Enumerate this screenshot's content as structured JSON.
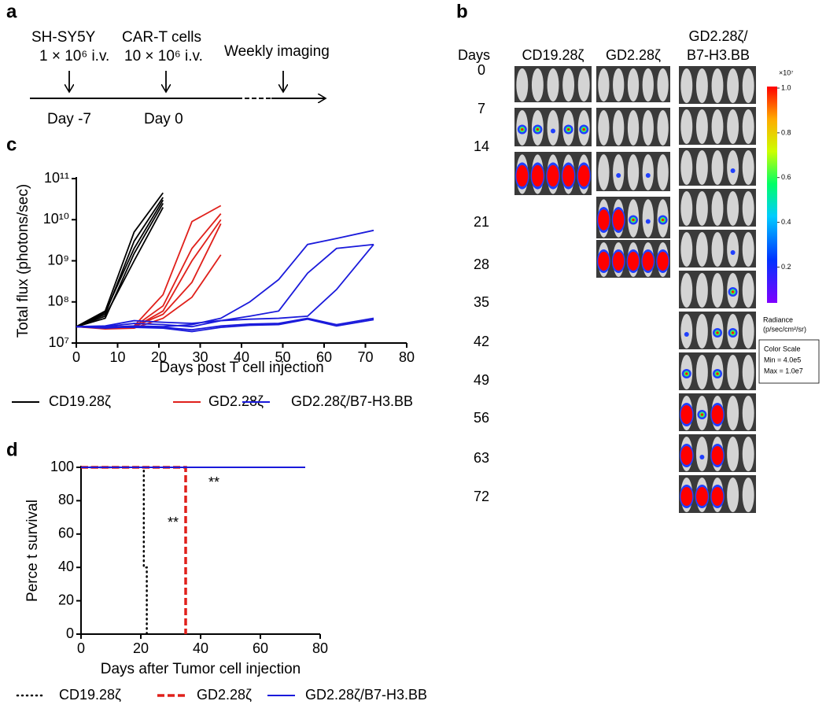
{
  "panel_a": {
    "label": "a",
    "steps": [
      {
        "title": "SH-SY5Y",
        "dose": "1 × 10⁶ i.v.",
        "day": "Day -7"
      },
      {
        "title": "CAR-T cells",
        "dose": "10 × 10⁶ i.v.",
        "day": "Day 0"
      }
    ],
    "imaging": "Weekly imaging"
  },
  "panel_b": {
    "label": "b",
    "row_header": "Days",
    "columns": [
      {
        "lines": [
          "CD19.28ζ"
        ]
      },
      {
        "lines": [
          "GD2.28ζ"
        ]
      },
      {
        "lines": [
          "GD2.28ζ/",
          "B7-H3.BB"
        ]
      }
    ],
    "days": [
      0,
      7,
      14,
      21,
      28,
      35,
      42,
      49,
      56,
      63,
      72
    ],
    "colorbar": {
      "multiplier": "×10⁷",
      "lim": [
        0.04,
        1
      ],
      "ticks": [
        {
          "value": 1,
          "label": "1.0"
        },
        0.8,
        0.6,
        0.4,
        0.2
      ],
      "title": "Radiance",
      "unit": "(p/sec/cm²/sr)",
      "scale_box": [
        "Color Scale",
        "Min = 4.0e5",
        "Max = 1.0e7"
      ]
    }
  },
  "chart_data": [
    {
      "type": "line",
      "panel_label": "c",
      "xlabel": "Days post T cell injection",
      "ylabel": "Total flux (photons/sec)",
      "xlim": [
        0,
        80
      ],
      "xticks": [
        0,
        10,
        20,
        30,
        40,
        50,
        60,
        70,
        80
      ],
      "ylim": [
        10000000.0,
        100000000000.0
      ],
      "yscale": "log",
      "yticks": [
        {
          "value": 10000000.0,
          "label": "10⁷"
        },
        {
          "value": 100000000.0,
          "label": "10⁸"
        },
        {
          "value": 1000000000.0,
          "label": "10⁹"
        },
        {
          "value": 10000000000.0,
          "label": "10¹⁰"
        },
        {
          "value": 100000000000.0,
          "label": "10¹¹"
        }
      ],
      "legend": "bottom",
      "series": [
        {
          "name": "CD19.28ζ",
          "color": "#000000",
          "x": [
            0,
            7,
            14,
            21
          ],
          "replicates": [
            [
              25000000.0,
              60000000.0,
              5000000000.0,
              45000000000.0
            ],
            [
              25000000.0,
              50000000.0,
              3000000000.0,
              35000000000.0
            ],
            [
              25000000.0,
              40000000.0,
              1500000000.0,
              25000000000.0
            ],
            [
              25000000.0,
              45000000.0,
              1000000000.0,
              20000000000.0
            ],
            [
              25000000.0,
              55000000.0,
              2000000000.0,
              30000000000.0
            ]
          ]
        },
        {
          "name": "GD2.28ζ",
          "color": "#e0201b",
          "x": [
            0,
            7,
            14,
            21,
            28,
            35
          ],
          "replicates": [
            [
              25000000.0,
              24000000.0,
              26000000.0,
              150000000.0,
              9000000000.0,
              22000000000.0
            ],
            [
              25000000.0,
              23000000.0,
              25000000.0,
              80000000.0,
              2000000000.0,
              14000000000.0
            ],
            [
              25000000.0,
              23000000.0,
              24000000.0,
              60000000.0,
              1000000000.0,
              10000000000.0
            ],
            [
              25000000.0,
              24000000.0,
              25000000.0,
              50000000.0,
              300000000.0,
              8000000000.0
            ],
            [
              25000000.0,
              22000000.0,
              23000000.0,
              40000000.0,
              130000000.0,
              1400000000.0
            ]
          ]
        },
        {
          "name": "GD2.28ζ/B7-H3.BB",
          "color": "#1a1adb",
          "x": [
            0,
            7,
            14,
            21,
            28,
            35,
            42,
            49,
            56,
            63,
            72
          ],
          "replicates": [
            [
              25000000.0,
              24000000.0,
              26000000.0,
              25000000.0,
              28000000.0,
              40000000.0,
              100000000.0,
              350000000.0,
              2500000000.0,
              3500000000.0,
              5500000000.0
            ],
            [
              25000000.0,
              25000000.0,
              30000000.0,
              28000000.0,
              25000000.0,
              35000000.0,
              45000000.0,
              60000000.0,
              500000000.0,
              2000000000.0,
              2500000000.0
            ],
            [
              25000000.0,
              26000000.0,
              35000000.0,
              32000000.0,
              30000000.0,
              35000000.0,
              38000000.0,
              40000000.0,
              45000000.0,
              200000000.0,
              2500000000.0
            ],
            [
              25000000.0,
              23000000.0,
              25000000.0,
              24000000.0,
              21000000.0,
              26000000.0,
              29000000.0,
              30000000.0,
              40000000.0,
              28000000.0,
              40000000.0
            ],
            [
              25000000.0,
              24000000.0,
              24000000.0,
              23000000.0,
              19000000.0,
              24000000.0,
              27000000.0,
              28000000.0,
              38000000.0,
              26000000.0,
              37000000.0
            ]
          ]
        }
      ]
    },
    {
      "type": "step",
      "panel_label": "d",
      "xlabel": "Days after Tumor cell injection",
      "ylabel": "Perce t survival",
      "xlim": [
        0,
        80
      ],
      "xticks": [
        0,
        20,
        40,
        60,
        80
      ],
      "ylim": [
        0,
        100
      ],
      "yticks": [
        0,
        20,
        40,
        60,
        80,
        100
      ],
      "legend": "bottom",
      "annotations": [
        "**",
        "**"
      ],
      "series": [
        {
          "name": "CD19.28ζ",
          "color": "#000000",
          "style": "dotted",
          "x": [
            0,
            21,
            21,
            22,
            22
          ],
          "values": [
            100,
            100,
            40,
            40,
            0
          ]
        },
        {
          "name": "GD2.28ζ",
          "color": "#e0201b",
          "style": "dashed",
          "x": [
            0,
            35,
            35
          ],
          "values": [
            100,
            100,
            0
          ]
        },
        {
          "name": "GD2.28ζ/B7-H3.BB",
          "color": "#1a1adb",
          "style": "solid",
          "x": [
            0,
            75
          ],
          "values": [
            100,
            100
          ]
        }
      ]
    }
  ]
}
